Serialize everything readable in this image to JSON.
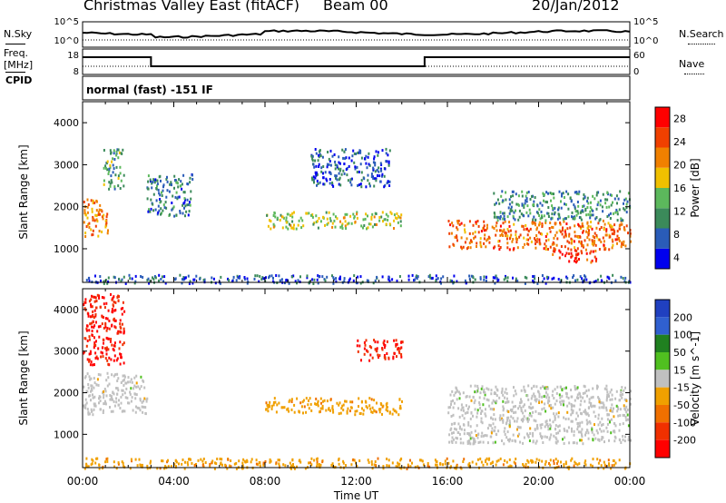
{
  "header": {
    "station": "Christmas Valley East (fitACF)",
    "beam": "Beam 00",
    "date": "20/Jan/2012"
  },
  "panels": {
    "nsky_label": "N.Sky",
    "nsky_ticks": [
      "10^5",
      "10^0"
    ],
    "nsearch_label": "N.Search",
    "nsearch_ticks": [
      "10^5",
      "10^0"
    ],
    "freq_label": "Freq.",
    "freq_unit": "[MHz]",
    "freq_ticks": [
      "18",
      "8"
    ],
    "nave_label": "Nave",
    "nave_ticks": [
      "60",
      "0"
    ],
    "cpid_label": "CPID",
    "cpid_text": "normal (fast) -151 IF"
  },
  "colors": {
    "power_scale": [
      "#0000ee",
      "#2a5cb8",
      "#3b8a5a",
      "#5cb85c",
      "#f0c000",
      "#f08000",
      "#f04000",
      "#ff0000"
    ],
    "velocity_scale": [
      "#2040c0",
      "#3060d0",
      "#208020",
      "#50c020",
      "#c0c0c0",
      "#f0a000",
      "#f07000",
      "#f03000",
      "#ff0000"
    ]
  },
  "chart_data": [
    {
      "type": "heatmap",
      "title": "",
      "xlabel": "",
      "ylabel": "Slant Range [km]",
      "x_ticks": [
        "00:00",
        "04:00",
        "08:00",
        "12:00",
        "16:00",
        "20:00",
        "00:00"
      ],
      "y_ticks": [
        "4000",
        "3000",
        "2000",
        "1000"
      ],
      "ylim": [
        200,
        4500
      ],
      "colorbar_label": "Power [dB]",
      "colorbar_ticks": [
        "28",
        "24",
        "20",
        "16",
        "12",
        "8",
        "4"
      ],
      "clim": [
        0,
        32
      ],
      "regions": [
        {
          "t": [
            0.0,
            1.1
          ],
          "r": [
            1300,
            2200
          ],
          "v": 22
        },
        {
          "t": [
            0.9,
            1.8
          ],
          "r": [
            2400,
            3400
          ],
          "v": 12
        },
        {
          "t": [
            2.8,
            4.8
          ],
          "r": [
            1800,
            2800
          ],
          "v": 8
        },
        {
          "t": [
            8.0,
            14.0
          ],
          "r": [
            1500,
            1900
          ],
          "v": 16
        },
        {
          "t": [
            10.0,
            13.5
          ],
          "r": [
            2500,
            3400
          ],
          "v": 6
        },
        {
          "t": [
            16.0,
            24.0
          ],
          "r": [
            1000,
            1700
          ],
          "v": 24
        },
        {
          "t": [
            18.0,
            24.0
          ],
          "r": [
            1700,
            2400
          ],
          "v": 10
        },
        {
          "t": [
            20.5,
            22.5
          ],
          "r": [
            700,
            1000
          ],
          "v": 28
        },
        {
          "t": [
            0.0,
            24.0
          ],
          "r": [
            200,
            400
          ],
          "v": 6
        }
      ]
    },
    {
      "type": "heatmap",
      "title": "",
      "xlabel": "Time UT",
      "ylabel": "Slant Range [km]",
      "x_ticks": [
        "00:00",
        "04:00",
        "08:00",
        "12:00",
        "16:00",
        "20:00",
        "00:00"
      ],
      "y_ticks": [
        "4000",
        "3000",
        "2000",
        "1000"
      ],
      "ylim": [
        200,
        4500
      ],
      "colorbar_label": "Velocity [m s^-1]",
      "colorbar_ticks": [
        "200",
        "100",
        "50",
        "15",
        "-15",
        "-50",
        "-100",
        "-200"
      ],
      "clim": [
        -250,
        250
      ],
      "regions": [
        {
          "t": [
            0.0,
            1.8
          ],
          "r": [
            2700,
            4400
          ],
          "v": -200
        },
        {
          "t": [
            0.0,
            2.8
          ],
          "r": [
            1500,
            2500
          ],
          "v": 0
        },
        {
          "t": [
            8.0,
            14.0
          ],
          "r": [
            1500,
            1900
          ],
          "v": -60
        },
        {
          "t": [
            12.0,
            14.0
          ],
          "r": [
            2800,
            3300
          ],
          "v": -200
        },
        {
          "t": [
            16.0,
            24.0
          ],
          "r": [
            800,
            2200
          ],
          "v": 0
        },
        {
          "t": [
            0.0,
            24.0
          ],
          "r": [
            200,
            450
          ],
          "v": -60
        }
      ]
    }
  ]
}
